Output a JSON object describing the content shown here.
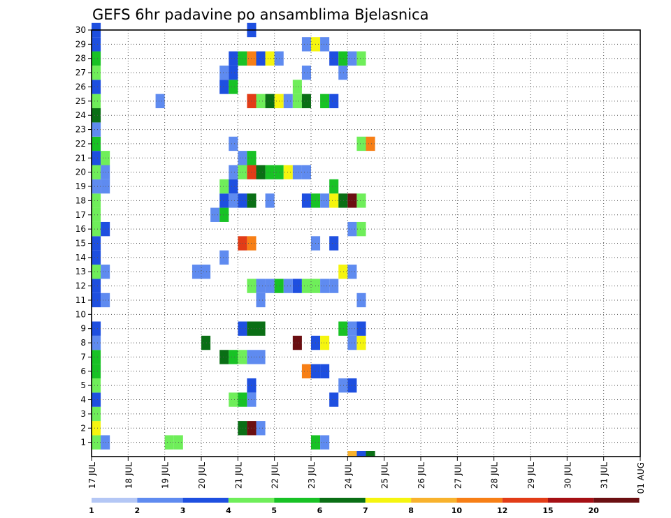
{
  "chart_data": {
    "type": "heatmap",
    "title": "GEFS 6hr padavine po ansamblima Bjelasnica",
    "xlabel": "",
    "ylabel": "",
    "x_tick_labels": [
      "17 JUL",
      "18 JUL",
      "19 JUL",
      "20 JUL",
      "21 JUL",
      "22 JUL",
      "23 JUL",
      "24 JUL",
      "25 JUL",
      "26 JUL",
      "27 JUL",
      "28 JUL",
      "29 JUL",
      "30 JUL",
      "31 JUL",
      "01 AUG"
    ],
    "y_tick_labels": [
      "1",
      "2",
      "3",
      "4",
      "5",
      "6",
      "7",
      "8",
      "9",
      "10",
      "11",
      "12",
      "13",
      "14",
      "15",
      "16",
      "17",
      "18",
      "19",
      "20",
      "21",
      "22",
      "23",
      "24",
      "25",
      "26",
      "27",
      "28",
      "29",
      "30"
    ],
    "x_range_steps": [
      0,
      60
    ],
    "steps_per_day": 4,
    "y_range": [
      0,
      30
    ],
    "grid": "dotted",
    "legend": {
      "placement": "bottom",
      "thresholds": [
        "1",
        "2",
        "3",
        "4",
        "5",
        "6",
        "7",
        "8",
        "10",
        "12",
        "15",
        "20"
      ],
      "colors": [
        "#b4c7f5",
        "#5f8bf0",
        "#1e4fe0",
        "#6fee5a",
        "#18c225",
        "#0a6f15",
        "#f5f50f",
        "#f8b22d",
        "#f77f16",
        "#e23c17",
        "#a50f14",
        "#6b0f12"
      ]
    },
    "cells": [
      [
        1,
        1,
        3
      ],
      [
        1,
        2,
        1
      ],
      [
        1,
        9,
        3
      ],
      [
        1,
        10,
        3
      ],
      [
        1,
        25,
        4
      ],
      [
        1,
        26,
        1
      ],
      [
        2,
        1,
        6
      ],
      [
        2,
        17,
        5
      ],
      [
        2,
        18,
        11
      ],
      [
        2,
        19,
        1
      ],
      [
        3,
        1,
        3
      ],
      [
        4,
        1,
        2
      ],
      [
        4,
        16,
        3
      ],
      [
        4,
        17,
        4
      ],
      [
        4,
        18,
        1
      ],
      [
        4,
        27,
        2
      ],
      [
        5,
        1,
        3
      ],
      [
        5,
        18,
        2
      ],
      [
        5,
        28,
        1
      ],
      [
        5,
        29,
        2
      ],
      [
        6,
        1,
        4
      ],
      [
        6,
        24,
        8
      ],
      [
        6,
        25,
        2
      ],
      [
        6,
        26,
        2
      ],
      [
        7,
        1,
        4
      ],
      [
        7,
        15,
        5
      ],
      [
        7,
        16,
        4
      ],
      [
        7,
        17,
        3
      ],
      [
        7,
        18,
        1
      ],
      [
        7,
        19,
        1
      ],
      [
        8,
        1,
        1
      ],
      [
        8,
        13,
        5
      ],
      [
        8,
        23,
        11
      ],
      [
        8,
        25,
        2
      ],
      [
        8,
        26,
        6
      ],
      [
        8,
        29,
        1
      ],
      [
        8,
        30,
        6
      ],
      [
        9,
        1,
        2
      ],
      [
        9,
        17,
        2
      ],
      [
        9,
        18,
        5
      ],
      [
        9,
        19,
        5
      ],
      [
        9,
        28,
        4
      ],
      [
        9,
        29,
        1
      ],
      [
        9,
        30,
        2
      ],
      [
        11,
        1,
        2
      ],
      [
        11,
        2,
        1
      ],
      [
        11,
        19,
        1
      ],
      [
        11,
        30,
        1
      ],
      [
        12,
        1,
        2
      ],
      [
        12,
        18,
        3
      ],
      [
        12,
        19,
        1
      ],
      [
        12,
        20,
        1
      ],
      [
        12,
        21,
        4
      ],
      [
        12,
        22,
        1
      ],
      [
        12,
        23,
        2
      ],
      [
        12,
        24,
        3
      ],
      [
        12,
        25,
        3
      ],
      [
        12,
        26,
        1
      ],
      [
        12,
        27,
        1
      ],
      [
        13,
        1,
        3
      ],
      [
        13,
        2,
        1
      ],
      [
        13,
        12,
        1
      ],
      [
        13,
        13,
        1
      ],
      [
        13,
        28,
        6
      ],
      [
        13,
        29,
        1
      ],
      [
        14,
        1,
        2
      ],
      [
        14,
        15,
        1
      ],
      [
        15,
        1,
        2
      ],
      [
        15,
        17,
        9
      ],
      [
        15,
        18,
        8
      ],
      [
        15,
        25,
        1
      ],
      [
        15,
        27,
        2
      ],
      [
        16,
        1,
        3
      ],
      [
        16,
        2,
        2
      ],
      [
        16,
        29,
        1
      ],
      [
        16,
        30,
        3
      ],
      [
        17,
        1,
        3
      ],
      [
        17,
        14,
        1
      ],
      [
        17,
        15,
        4
      ],
      [
        18,
        1,
        3
      ],
      [
        18,
        15,
        2
      ],
      [
        18,
        16,
        1
      ],
      [
        18,
        17,
        2
      ],
      [
        18,
        18,
        5
      ],
      [
        18,
        20,
        1
      ],
      [
        18,
        24,
        2
      ],
      [
        18,
        25,
        4
      ],
      [
        18,
        26,
        1
      ],
      [
        18,
        27,
        6
      ],
      [
        18,
        28,
        5
      ],
      [
        18,
        29,
        11
      ],
      [
        18,
        30,
        3
      ],
      [
        19,
        1,
        1
      ],
      [
        19,
        2,
        1
      ],
      [
        19,
        15,
        3
      ],
      [
        19,
        16,
        2
      ],
      [
        19,
        27,
        4
      ],
      [
        20,
        1,
        3
      ],
      [
        20,
        2,
        1
      ],
      [
        20,
        16,
        1
      ],
      [
        20,
        17,
        3
      ],
      [
        20,
        18,
        9
      ],
      [
        20,
        19,
        5
      ],
      [
        20,
        20,
        4
      ],
      [
        20,
        21,
        4
      ],
      [
        20,
        22,
        6
      ],
      [
        20,
        23,
        1
      ],
      [
        20,
        24,
        1
      ],
      [
        21,
        1,
        2
      ],
      [
        21,
        2,
        3
      ],
      [
        21,
        17,
        1
      ],
      [
        21,
        18,
        4
      ],
      [
        22,
        1,
        4
      ],
      [
        22,
        16,
        1
      ],
      [
        22,
        30,
        3
      ],
      [
        22,
        31,
        8
      ],
      [
        23,
        1,
        1
      ],
      [
        24,
        1,
        5
      ],
      [
        25,
        1,
        3
      ],
      [
        25,
        8,
        1
      ],
      [
        25,
        18,
        9
      ],
      [
        25,
        19,
        3
      ],
      [
        25,
        20,
        5
      ],
      [
        25,
        21,
        6
      ],
      [
        25,
        22,
        1
      ],
      [
        25,
        23,
        3
      ],
      [
        25,
        24,
        5
      ],
      [
        25,
        26,
        4
      ],
      [
        25,
        27,
        2
      ],
      [
        26,
        1,
        2
      ],
      [
        26,
        15,
        2
      ],
      [
        26,
        16,
        4
      ],
      [
        26,
        23,
        3
      ],
      [
        27,
        1,
        3
      ],
      [
        27,
        15,
        1
      ],
      [
        27,
        16,
        2
      ],
      [
        27,
        24,
        1
      ],
      [
        27,
        28,
        1
      ],
      [
        28,
        1,
        4
      ],
      [
        28,
        16,
        2
      ],
      [
        28,
        17,
        4
      ],
      [
        28,
        18,
        8
      ],
      [
        28,
        19,
        2
      ],
      [
        28,
        20,
        6
      ],
      [
        28,
        21,
        1
      ],
      [
        28,
        27,
        2
      ],
      [
        28,
        28,
        4
      ],
      [
        28,
        29,
        1
      ],
      [
        28,
        30,
        3
      ],
      [
        29,
        1,
        2
      ],
      [
        29,
        24,
        1
      ],
      [
        29,
        25,
        6
      ],
      [
        29,
        26,
        1
      ],
      [
        30,
        1,
        2
      ],
      [
        30,
        18,
        2
      ],
      [
        0,
        29,
        7
      ],
      [
        0,
        30,
        2
      ],
      [
        0,
        31,
        5
      ]
    ]
  }
}
